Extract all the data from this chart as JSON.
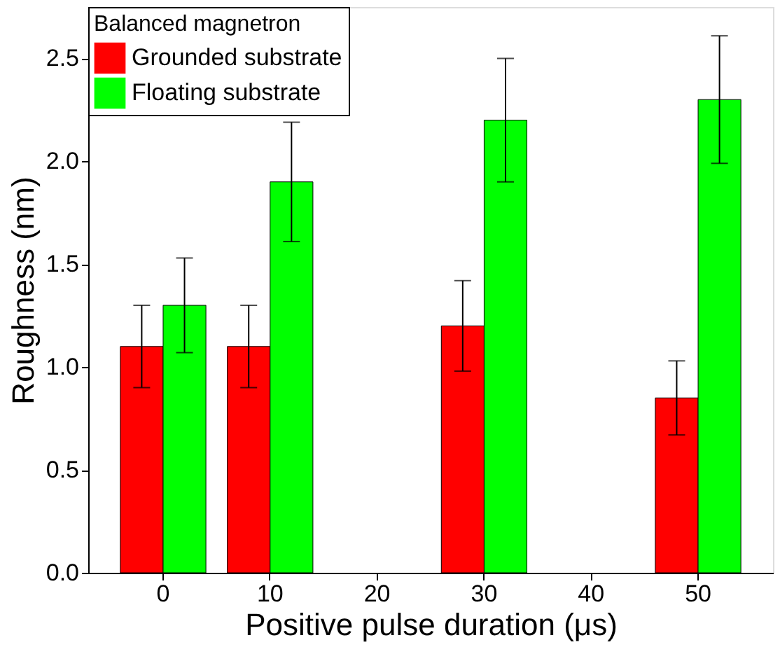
{
  "chart_data": {
    "type": "bar",
    "xlabel": "Positive pulse duration (μs)",
    "ylabel": "Roughness (nm)",
    "legend_title": "Balanced magnetron",
    "legend": "top left",
    "grid": false,
    "categories": [
      "0",
      "10",
      "20",
      "30",
      "40",
      "50"
    ],
    "ylim": [
      0,
      2.75
    ],
    "yticks": [
      {
        "value": 0,
        "label": "0.0"
      },
      0.5,
      {
        "value": 1,
        "label": "1.0"
      },
      1.5,
      {
        "value": 2,
        "label": "2.0"
      },
      2.5
    ],
    "series": [
      {
        "name": "Grounded substrate",
        "color": "#ff0000",
        "values": [
          1.1,
          1.1,
          null,
          1.2,
          null,
          0.85
        ],
        "errors": [
          0.2,
          0.2,
          null,
          0.22,
          null,
          0.18
        ]
      },
      {
        "name": "Floating substrate",
        "color": "#00ff00",
        "values": [
          1.3,
          1.9,
          null,
          2.2,
          null,
          2.3
        ],
        "errors": [
          0.23,
          0.29,
          null,
          0.3,
          null,
          0.31
        ]
      }
    ]
  }
}
